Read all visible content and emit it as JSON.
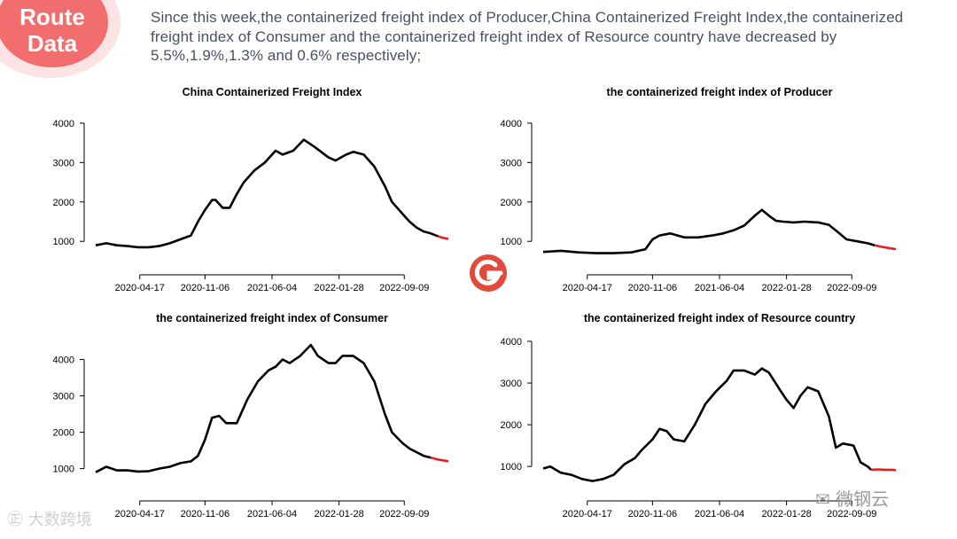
{
  "badge": {
    "line1": "Route",
    "line2": "Data"
  },
  "summary": "Since this week,the containerized freight index of Producer,China Containerized Freight Index,the containerized freight index of Consumer and the containerized freight index of Resource country have decreased by 5.5%,1.9%,1.3% and 0.6% respectively;",
  "watermarks": {
    "left": "大数跨境",
    "right": "微钢云"
  },
  "colors": {
    "line": "#000000",
    "highlight": "#e0201c",
    "badge": "#f26d6d",
    "text": "#4a4f66"
  },
  "chart_data": [
    {
      "type": "line",
      "title": "China Containerized Freight Index",
      "xlabel": "",
      "ylabel": "",
      "ylim": [
        600,
        4200
      ],
      "yticks": [
        "1000",
        "2000",
        "3000",
        "4000"
      ],
      "xticks": [
        "2020-04-17",
        "2020-11-06",
        "2021-06-04",
        "2022-01-28",
        "2022-09-09"
      ],
      "x": [
        0,
        0.03,
        0.06,
        0.09,
        0.12,
        0.15,
        0.18,
        0.21,
        0.24,
        0.27,
        0.29,
        0.31,
        0.33,
        0.34,
        0.36,
        0.38,
        0.4,
        0.42,
        0.45,
        0.48,
        0.51,
        0.53,
        0.56,
        0.59,
        0.62,
        0.66,
        0.68,
        0.71,
        0.73,
        0.76,
        0.79,
        0.82,
        0.84,
        0.86,
        0.88,
        0.89,
        0.91,
        0.93,
        0.95,
        0.97,
        0.98,
        1.0
      ],
      "values": [
        900,
        950,
        900,
        880,
        850,
        850,
        880,
        950,
        1050,
        1150,
        1500,
        1800,
        2050,
        2050,
        1850,
        1850,
        2200,
        2500,
        2800,
        3000,
        3300,
        3200,
        3300,
        3580,
        3400,
        3130,
        3050,
        3200,
        3270,
        3200,
        2900,
        2400,
        2000,
        1800,
        1600,
        1500,
        1350,
        1250,
        1200,
        1130,
        1100,
        1060
      ],
      "highlight_from": 39
    },
    {
      "type": "line",
      "title": "the containerized freight index of Producer",
      "xlabel": "",
      "ylabel": "",
      "ylim": [
        600,
        4200
      ],
      "yticks": [
        "1000",
        "2000",
        "3000",
        "4000"
      ],
      "xticks": [
        "2020-04-17",
        "2020-11-06",
        "2021-06-04",
        "2022-01-28",
        "2022-09-09"
      ],
      "x": [
        0,
        0.05,
        0.1,
        0.15,
        0.2,
        0.25,
        0.29,
        0.31,
        0.33,
        0.36,
        0.4,
        0.44,
        0.48,
        0.51,
        0.54,
        0.57,
        0.6,
        0.62,
        0.64,
        0.66,
        0.68,
        0.71,
        0.74,
        0.78,
        0.81,
        0.84,
        0.86,
        0.89,
        0.92,
        0.94,
        0.96,
        0.98,
        1.0
      ],
      "values": [
        730,
        760,
        720,
        700,
        700,
        720,
        800,
        1050,
        1150,
        1200,
        1100,
        1100,
        1150,
        1200,
        1280,
        1400,
        1650,
        1800,
        1650,
        1520,
        1500,
        1480,
        1500,
        1480,
        1420,
        1200,
        1050,
        1000,
        950,
        900,
        860,
        830,
        800
      ],
      "highlight_from": 29
    },
    {
      "type": "line",
      "title": "the containerized freight index of Consumer",
      "xlabel": "",
      "ylabel": "",
      "ylim": [
        600,
        4500
      ],
      "yticks": [
        "1000",
        "2000",
        "3000",
        "4000"
      ],
      "xticks": [
        "2020-04-17",
        "2020-11-06",
        "2021-06-04",
        "2022-01-28",
        "2022-09-09"
      ],
      "x": [
        0,
        0.03,
        0.06,
        0.09,
        0.12,
        0.15,
        0.18,
        0.21,
        0.24,
        0.27,
        0.29,
        0.31,
        0.33,
        0.35,
        0.37,
        0.4,
        0.43,
        0.46,
        0.49,
        0.51,
        0.53,
        0.55,
        0.58,
        0.61,
        0.63,
        0.66,
        0.68,
        0.7,
        0.73,
        0.76,
        0.79,
        0.82,
        0.84,
        0.87,
        0.89,
        0.91,
        0.93,
        0.95,
        0.97,
        0.99,
        1.0
      ],
      "values": [
        900,
        1050,
        950,
        950,
        920,
        930,
        1000,
        1050,
        1150,
        1200,
        1350,
        1800,
        2400,
        2450,
        2250,
        2250,
        2900,
        3400,
        3700,
        3800,
        4000,
        3900,
        4100,
        4400,
        4100,
        3900,
        3900,
        4100,
        4100,
        3900,
        3400,
        2500,
        2000,
        1700,
        1550,
        1450,
        1350,
        1300,
        1250,
        1220,
        1200
      ],
      "highlight_from": 37
    },
    {
      "type": "line",
      "title": "the containerized freight index of Resource country",
      "xlabel": "",
      "ylabel": "",
      "ylim": [
        600,
        4000
      ],
      "yticks": [
        "1000",
        "2000",
        "3000",
        "4000"
      ],
      "xticks": [
        "2020-04-17",
        "2020-11-06",
        "2021-06-04",
        "2022-01-28",
        "2022-09-09"
      ],
      "x": [
        0,
        0.02,
        0.05,
        0.08,
        0.11,
        0.14,
        0.17,
        0.2,
        0.23,
        0.26,
        0.28,
        0.31,
        0.33,
        0.35,
        0.37,
        0.4,
        0.43,
        0.46,
        0.49,
        0.52,
        0.54,
        0.57,
        0.6,
        0.62,
        0.64,
        0.67,
        0.69,
        0.71,
        0.73,
        0.75,
        0.78,
        0.81,
        0.83,
        0.85,
        0.88,
        0.9,
        0.92,
        0.93,
        0.95,
        0.97,
        0.99,
        1.0
      ],
      "values": [
        950,
        1000,
        850,
        800,
        700,
        650,
        700,
        800,
        1050,
        1200,
        1400,
        1650,
        1900,
        1850,
        1650,
        1600,
        2000,
        2500,
        2800,
        3050,
        3300,
        3300,
        3200,
        3350,
        3250,
        2850,
        2600,
        2400,
        2700,
        2900,
        2800,
        2200,
        1450,
        1550,
        1500,
        1100,
        1000,
        920,
        930,
        920,
        920,
        910
      ],
      "highlight_from": 37
    }
  ]
}
